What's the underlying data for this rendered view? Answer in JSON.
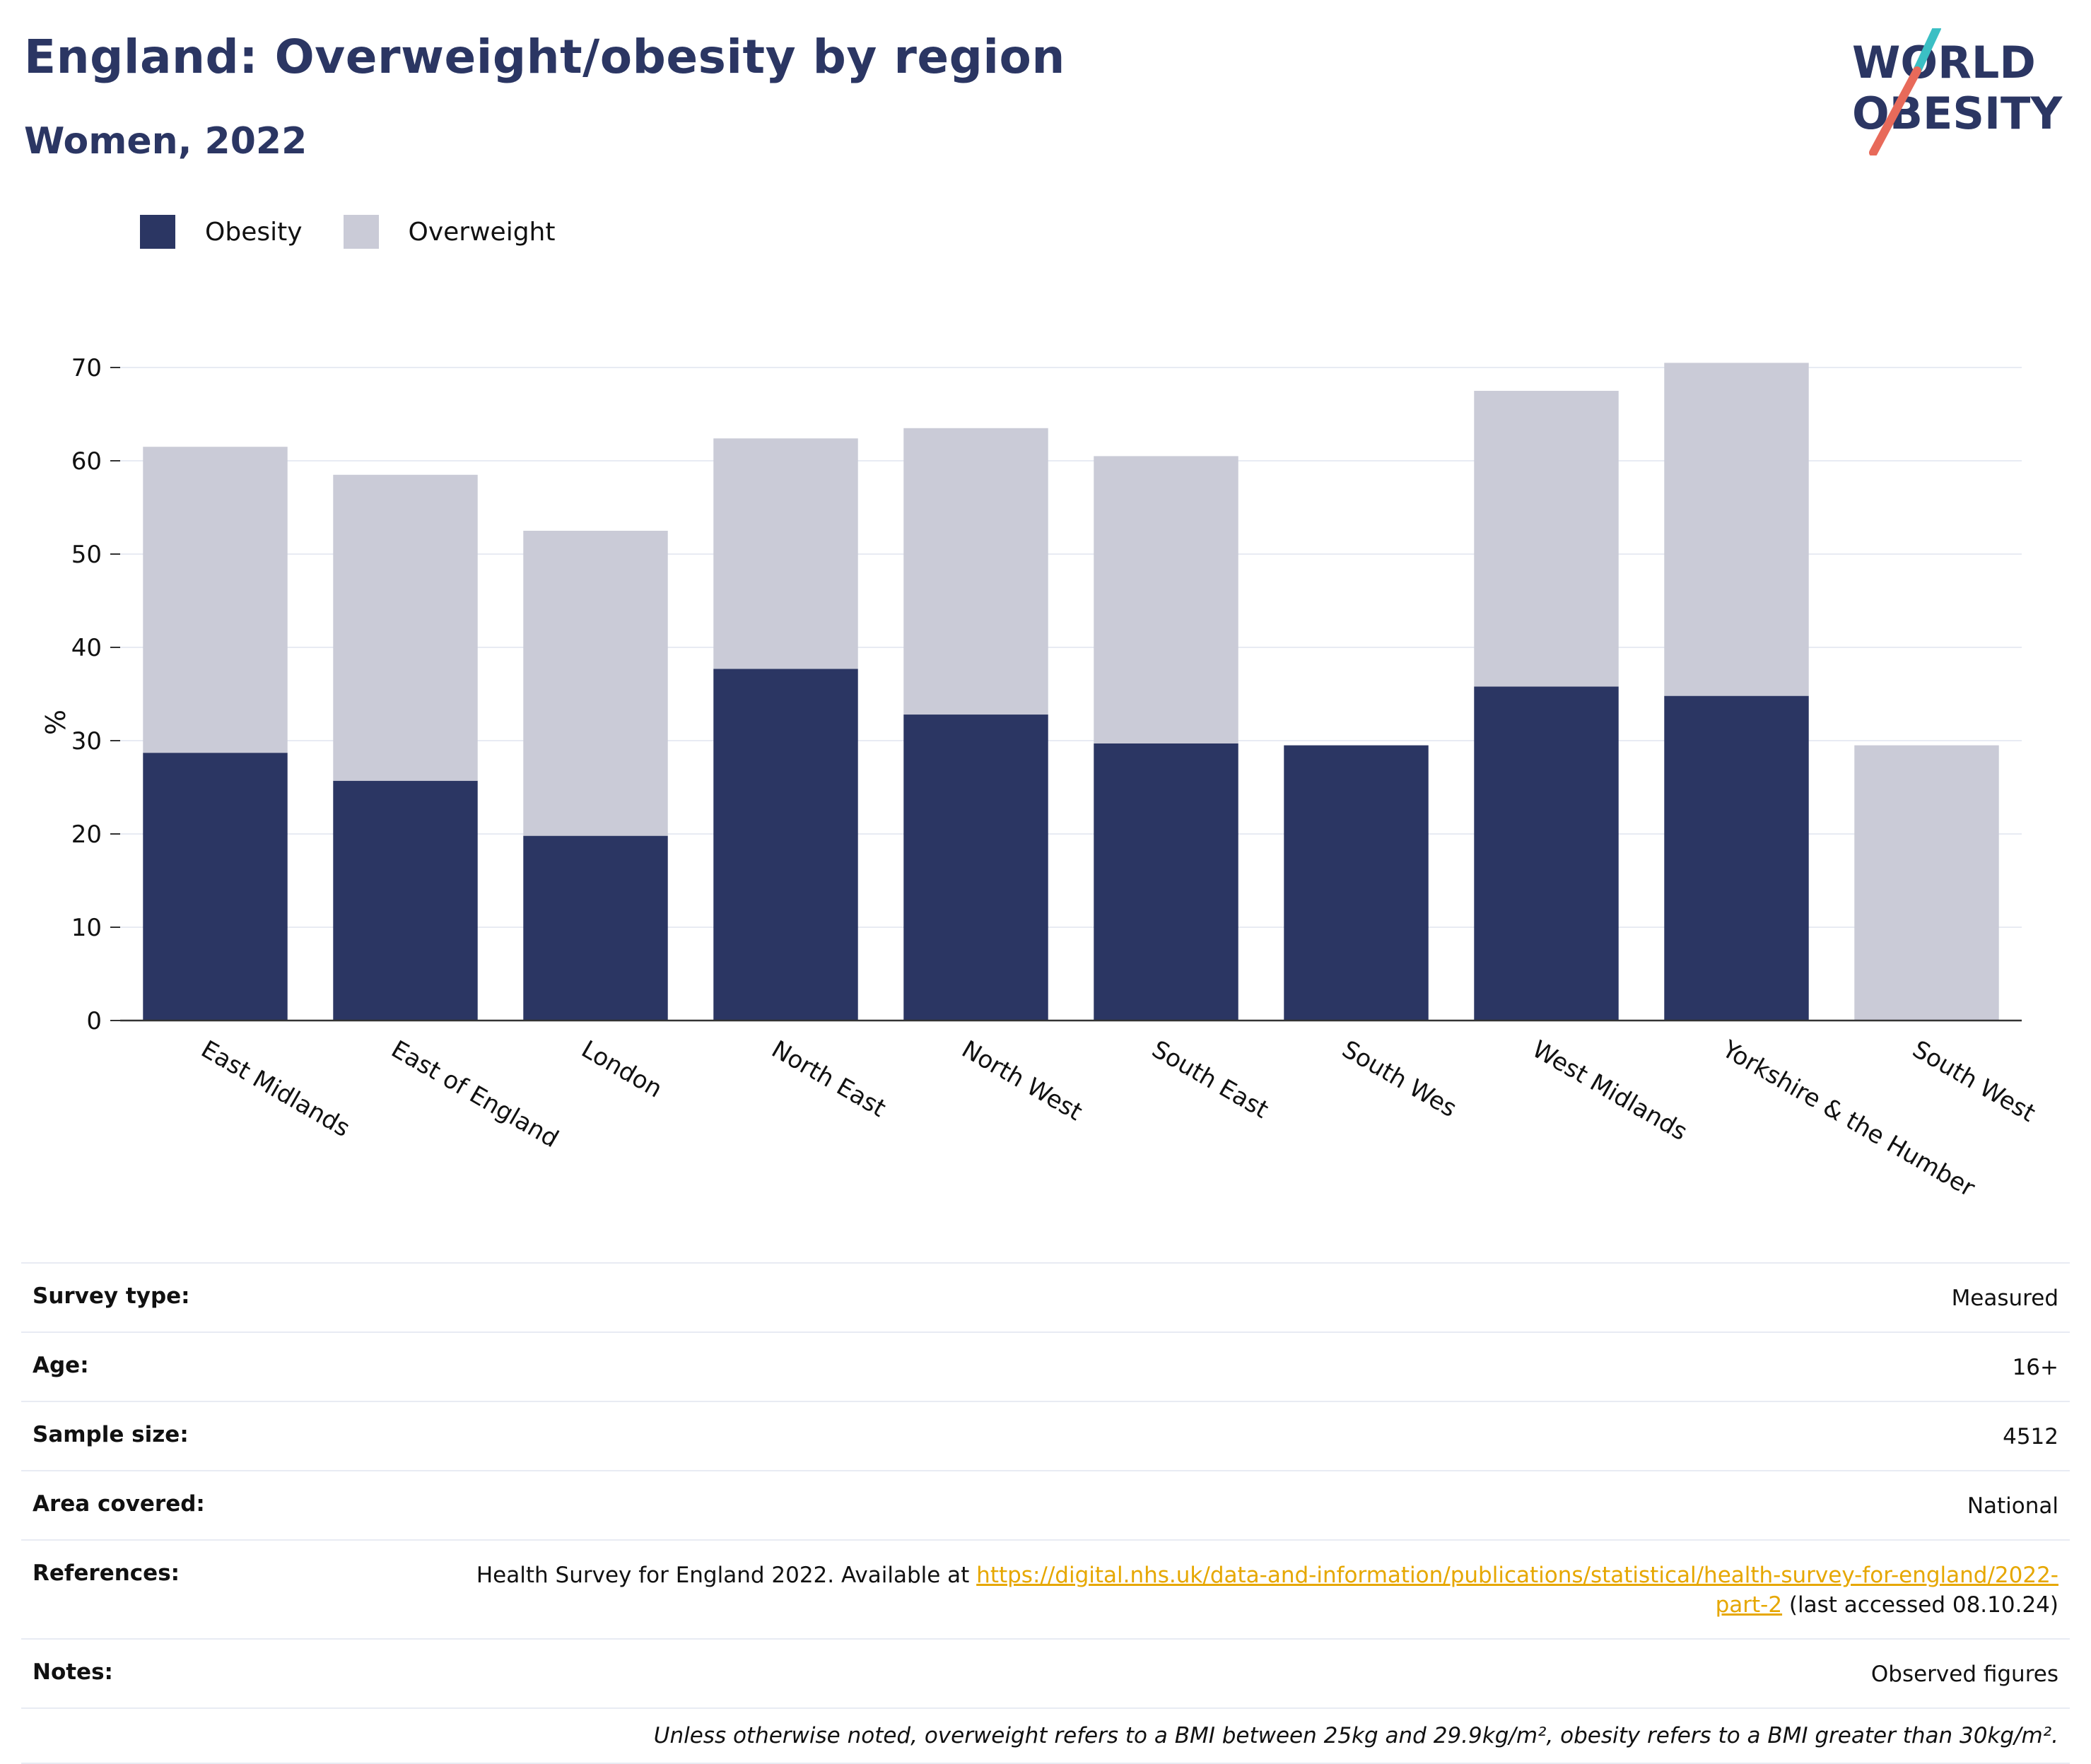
{
  "title": "England: Overweight/obesity by region",
  "subtitle": "Women, 2022",
  "logo": {
    "line1": "WORLD",
    "line2": "OBESITY",
    "accent_teal": "#3bbfc4",
    "accent_coral": "#e86a5a"
  },
  "colors": {
    "obesity": "#2b3663",
    "overweight": "#cacbd7",
    "text_dark": "#2b3663",
    "link": "#e6a700"
  },
  "legend": {
    "obesity": "Obesity",
    "overweight": "Overweight"
  },
  "chart_data": {
    "type": "bar",
    "stacked": true,
    "ylabel": "%",
    "ylim": [
      0,
      70
    ],
    "yticks": [
      0,
      10,
      20,
      30,
      40,
      50,
      60,
      70
    ],
    "categories": [
      "East Midlands",
      "East of England",
      "London",
      "North East",
      "North West",
      "South East",
      "South Wes",
      "West Midlands",
      "Yorkshire & the Humber",
      "South West"
    ],
    "series": [
      {
        "name": "Obesity",
        "values": [
          28.7,
          25.7,
          19.8,
          37.7,
          32.8,
          29.7,
          29.5,
          35.8,
          34.8,
          0
        ]
      },
      {
        "name": "Overweight",
        "values": [
          32.8,
          32.8,
          32.7,
          24.7,
          30.7,
          30.8,
          0,
          31.7,
          35.7,
          29.5
        ]
      }
    ],
    "grid": true,
    "legend_position": "top-left"
  },
  "meta": {
    "survey_type": {
      "label": "Survey type:",
      "value": "Measured"
    },
    "age": {
      "label": "Age:",
      "value": "16+"
    },
    "sample_size": {
      "label": "Sample size:",
      "value": "4512"
    },
    "area": {
      "label": "Area covered:",
      "value": "National"
    },
    "references": {
      "label": "References:",
      "prefix": "Health Survey for England 2022. Available at ",
      "link": "https://digital.nhs.uk/data-and-information/publications/statistical/health-survey-for-england/2022-part-2",
      "suffix": " (last accessed 08.10.24)"
    },
    "notes": {
      "label": "Notes:",
      "value": "Observed figures"
    },
    "footnote": "Unless otherwise noted, overweight refers to a BMI between 25kg and 29.9kg/m², obesity refers to a BMI greater than 30kg/m²."
  }
}
